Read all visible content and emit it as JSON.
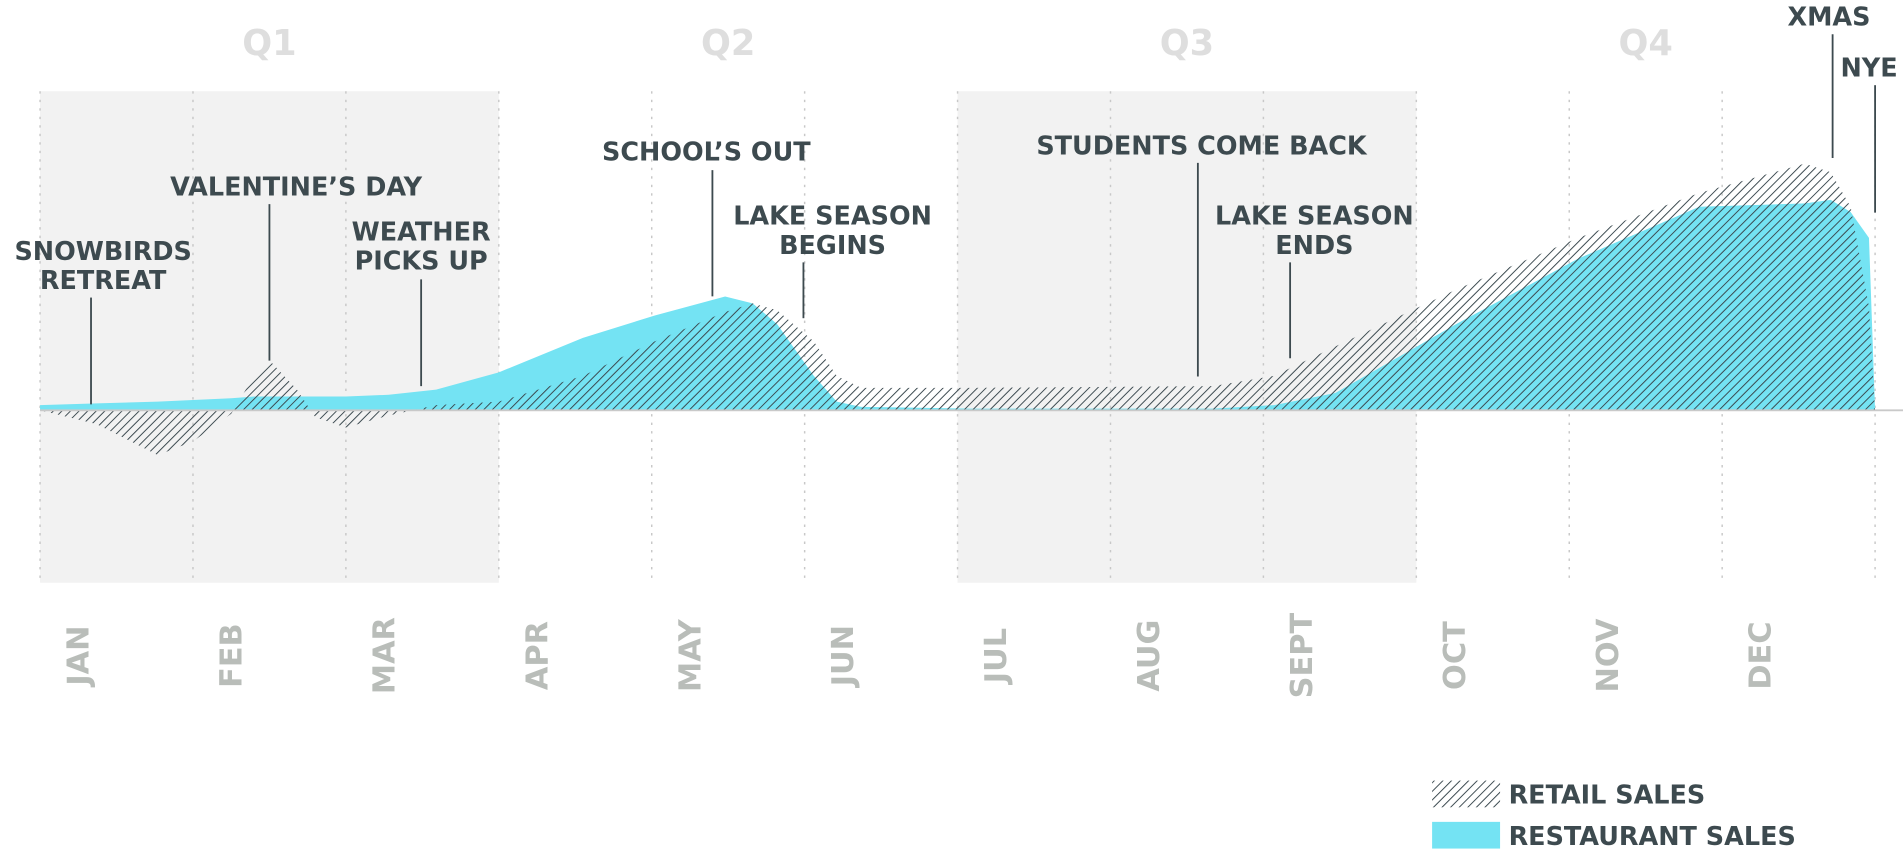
{
  "chart_data": {
    "type": "area",
    "x": [
      0,
      0.37,
      0.77,
      1.0,
      1.25,
      1.4,
      1.5,
      1.68,
      1.8,
      2.0,
      2.28,
      2.59,
      3.0,
      3.55,
      4.02,
      4.48,
      4.66,
      4.82,
      5.06,
      5.21,
      5.37,
      6.09,
      7.67,
      8.07,
      8.47,
      9.26,
      10.06,
      10.85,
      11.54,
      11.71,
      11.84,
      11.96,
      12.0
    ],
    "xlim": [
      0,
      12
    ],
    "ylim": [
      -100,
      185
    ],
    "categories": [
      "JAN",
      "FEB",
      "MAR",
      "APR",
      "MAY",
      "JUN",
      "JUL",
      "AUG",
      "SEPT",
      "OCT",
      "NOV",
      "DEC"
    ],
    "quarters": [
      "Q1",
      "Q2",
      "Q3",
      "Q4"
    ],
    "series": [
      {
        "name": "RESTAURANT SALES",
        "color": "#74e3f3",
        "pattern": "solid",
        "values": [
          3,
          4,
          5,
          6,
          7,
          8,
          8,
          8,
          8,
          8,
          9,
          12,
          22,
          42,
          55,
          66,
          62,
          50,
          20,
          5,
          2,
          1,
          1,
          3,
          10,
          50,
          88,
          118,
          120,
          122,
          115,
          100,
          0
        ]
      },
      {
        "name": "RETAIL SALES",
        "color": "#3a484e",
        "pattern": "hatch",
        "values": [
          0,
          -8,
          -26,
          -18,
          -2,
          20,
          29,
          12,
          -4,
          -10,
          -3,
          3,
          5,
          20,
          40,
          57,
          62,
          58,
          40,
          20,
          13,
          13,
          14,
          20,
          37,
          70,
          100,
          126,
          143,
          138,
          118,
          60,
          0
        ]
      }
    ],
    "annotations": [
      {
        "lines": [
          "SNOWBIRDS",
          "RETREAT"
        ]
      },
      {
        "lines": [
          "VALENTINE’S DAY"
        ]
      },
      {
        "lines": [
          "WEATHER",
          "PICKS UP"
        ]
      },
      {
        "lines": [
          "SCHOOL’S OUT"
        ]
      },
      {
        "lines": [
          "LAKE SEASON",
          "BEGINS"
        ]
      },
      {
        "lines": [
          "STUDENTS COME BACK"
        ]
      },
      {
        "lines": [
          "LAKE SEASON",
          "ENDS"
        ]
      },
      {
        "lines": [
          "XMAS"
        ]
      },
      {
        "lines": [
          "NYE"
        ]
      }
    ]
  }
}
